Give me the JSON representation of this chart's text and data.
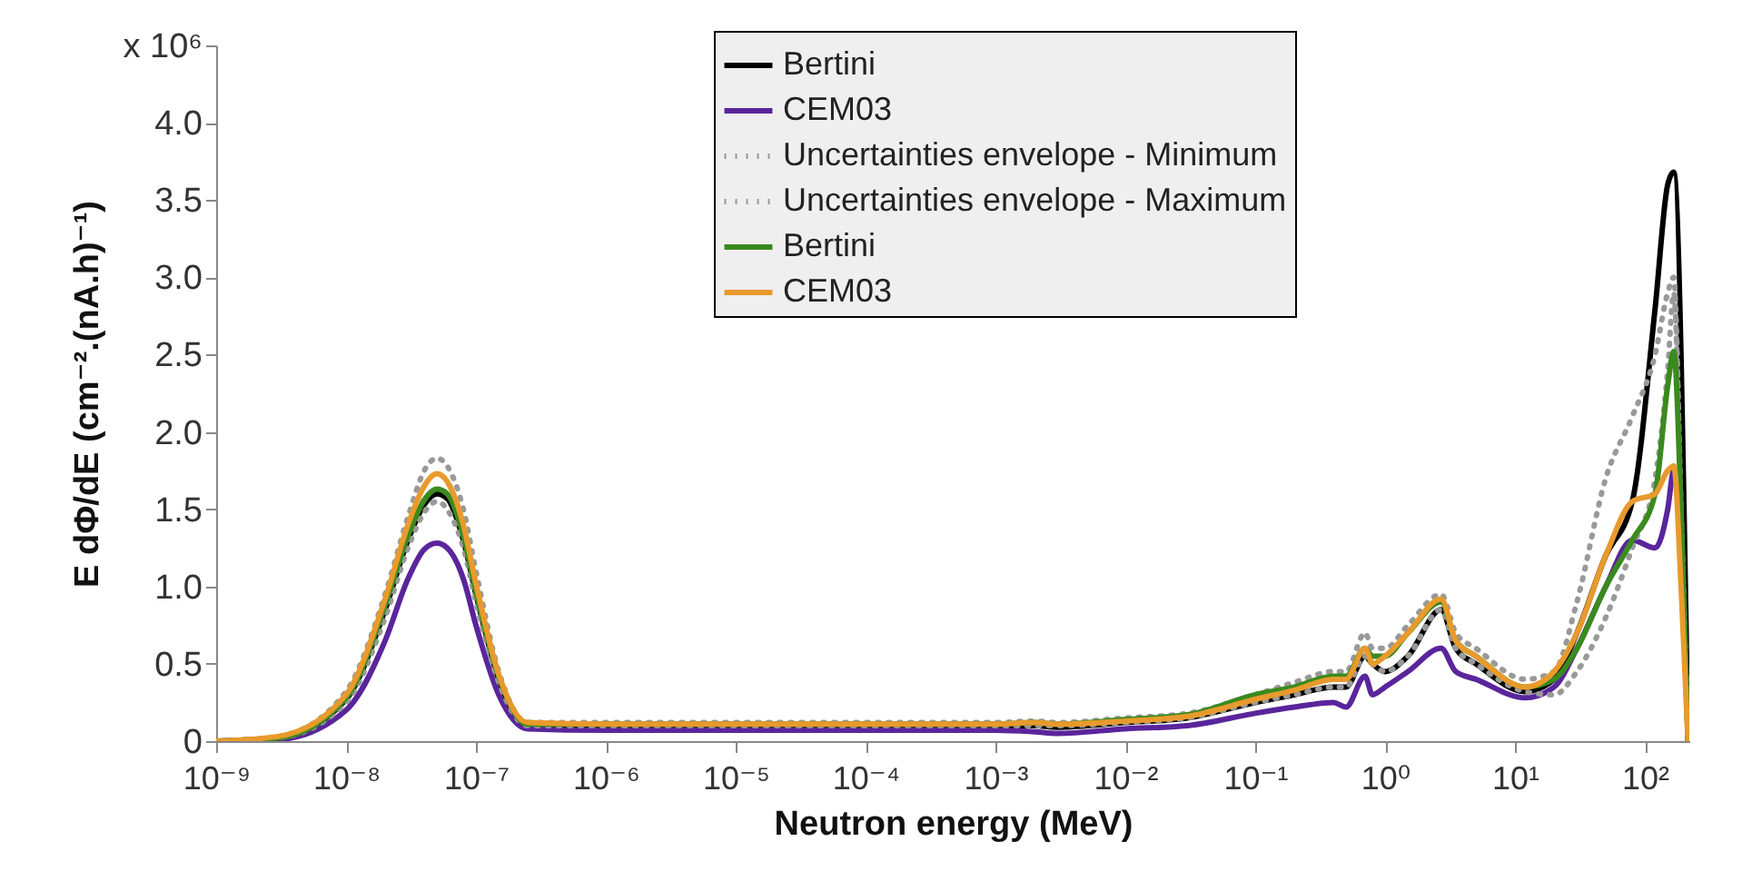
{
  "chart_data": {
    "type": "line",
    "xlabel": "Neutron energy (MeV)",
    "ylabel": "E dΦ/dE (cm⁻².(nA.h)⁻¹)",
    "log": "x",
    "x": [
      1e-09,
      3e-09,
      1e-08,
      2e-08,
      3e-08,
      4e-08,
      5e-08,
      6e-08,
      8e-08,
      1e-07,
      1.5e-07,
      2.5e-07,
      1e-06,
      1e-05,
      0.0001,
      0.001,
      0.002,
      0.003,
      0.01,
      0.03,
      0.1,
      0.2,
      0.4,
      0.5,
      0.7,
      0.8,
      1,
      1.5,
      2.7,
      3.5,
      5,
      12,
      20,
      30,
      50,
      80,
      120,
      150,
      167,
      190,
      215
    ],
    "xlim": [
      1e-09,
      220
    ],
    "xticks": [
      {
        "value": 1e-09,
        "label": "10⁻⁹"
      },
      {
        "value": 1e-08,
        "label": "10⁻⁸"
      },
      {
        "value": 1e-07,
        "label": "10⁻⁷"
      },
      {
        "value": 1e-06,
        "label": "10⁻⁶"
      },
      {
        "value": 1e-05,
        "label": "10⁻⁵"
      },
      {
        "value": 0.0001,
        "label": "10⁻⁴"
      },
      {
        "value": 0.001,
        "label": "10⁻³"
      },
      {
        "value": 0.01,
        "label": "10⁻²"
      },
      {
        "value": 0.1,
        "label": "10⁻¹"
      },
      {
        "value": 1,
        "label": "10⁰"
      },
      {
        "value": 10,
        "label": "10¹"
      },
      {
        "value": 100,
        "label": "10²"
      }
    ],
    "ylim": [
      0,
      4.5
    ],
    "yticks": [
      0,
      0.5,
      {
        "value": 1,
        "label": "1.0"
      },
      1.5,
      {
        "value": 2,
        "label": "2.0"
      },
      2.5,
      {
        "value": 3,
        "label": "3.0"
      },
      3.5,
      {
        "value": 4,
        "label": "4.0"
      },
      {
        "value": 4.5,
        "label": "x 10⁶"
      }
    ],
    "grid": false,
    "legend": "top right",
    "series": [
      {
        "name": "Bertini",
        "color": "#000000",
        "line_style": "solid",
        "values": [
          0,
          0.02,
          0.27,
          0.85,
          1.3,
          1.53,
          1.6,
          1.57,
          1.3,
          0.95,
          0.4,
          0.1,
          0.1,
          0.09,
          0.09,
          0.09,
          0.1,
          0.09,
          0.12,
          0.15,
          0.25,
          0.3,
          0.35,
          0.35,
          0.55,
          0.5,
          0.45,
          0.55,
          0.85,
          0.6,
          0.5,
          0.32,
          0.4,
          0.7,
          1.2,
          1.55,
          2.8,
          3.6,
          3.68,
          null,
          0
        ]
      },
      {
        "name": "CEM03",
        "color": "#5a259c",
        "line_style": "solid",
        "values": [
          0,
          0.01,
          0.2,
          0.65,
          1.05,
          1.24,
          1.28,
          1.25,
          1.05,
          0.75,
          0.3,
          0.08,
          0.07,
          0.07,
          0.07,
          0.07,
          0.06,
          0.05,
          0.08,
          0.1,
          0.18,
          0.22,
          0.25,
          0.22,
          0.42,
          0.3,
          0.35,
          0.45,
          0.6,
          0.45,
          0.4,
          0.28,
          0.35,
          0.6,
          1.0,
          1.3,
          1.25,
          1.5,
          1.75,
          null,
          0
        ]
      },
      {
        "name": "Uncertainties envelope - Minimum",
        "color": "#999999",
        "line_style": "dotted",
        "values": [
          0,
          0.02,
          0.25,
          0.8,
          1.25,
          1.48,
          1.55,
          1.5,
          1.25,
          0.9,
          0.38,
          0.1,
          0.1,
          0.1,
          0.1,
          0.1,
          0.1,
          0.1,
          0.12,
          0.15,
          0.25,
          0.3,
          0.35,
          0.35,
          0.55,
          0.5,
          0.45,
          0.55,
          0.85,
          0.6,
          0.5,
          0.32,
          0.3,
          0.45,
          0.8,
          1.25,
          1.7,
          2.4,
          2.9,
          1.5,
          0
        ]
      },
      {
        "name": "Uncertainties envelope - Maximum",
        "color": "#999999",
        "line_style": "dotted",
        "values": [
          0,
          0.03,
          0.32,
          0.95,
          1.45,
          1.75,
          1.83,
          1.78,
          1.5,
          1.1,
          0.45,
          0.12,
          0.12,
          0.12,
          0.12,
          0.12,
          0.13,
          0.12,
          0.15,
          0.18,
          0.3,
          0.38,
          0.45,
          0.45,
          0.7,
          0.6,
          0.6,
          0.75,
          0.95,
          0.7,
          0.6,
          0.4,
          0.45,
          0.9,
          1.7,
          2.1,
          2.5,
          2.9,
          3.0,
          1.5,
          0
        ]
      },
      {
        "name": "Bertini",
        "color": "#3a8a1e",
        "line_style": "solid",
        "values": [
          0,
          0.02,
          0.28,
          0.88,
          1.33,
          1.56,
          1.63,
          1.6,
          1.33,
          0.97,
          0.42,
          0.11,
          0.11,
          0.11,
          0.11,
          0.11,
          0.12,
          0.11,
          0.14,
          0.17,
          0.3,
          0.35,
          0.42,
          0.42,
          0.6,
          0.55,
          0.55,
          0.7,
          0.9,
          0.65,
          0.55,
          0.35,
          0.4,
          0.6,
          1.0,
          1.3,
          1.6,
          2.3,
          2.52,
          1.5,
          0
        ]
      },
      {
        "name": "CEM03",
        "color": "#e89a2c",
        "line_style": "solid",
        "values": [
          0,
          0.03,
          0.3,
          0.92,
          1.4,
          1.65,
          1.73,
          1.68,
          1.4,
          1.02,
          0.43,
          0.12,
          0.11,
          0.11,
          0.11,
          0.11,
          0.12,
          0.11,
          0.13,
          0.16,
          0.27,
          0.33,
          0.4,
          0.4,
          0.6,
          0.5,
          0.55,
          0.7,
          0.92,
          0.65,
          0.55,
          0.35,
          0.45,
          0.7,
          1.2,
          1.55,
          1.6,
          1.75,
          1.78,
          1.0,
          0
        ]
      }
    ]
  }
}
